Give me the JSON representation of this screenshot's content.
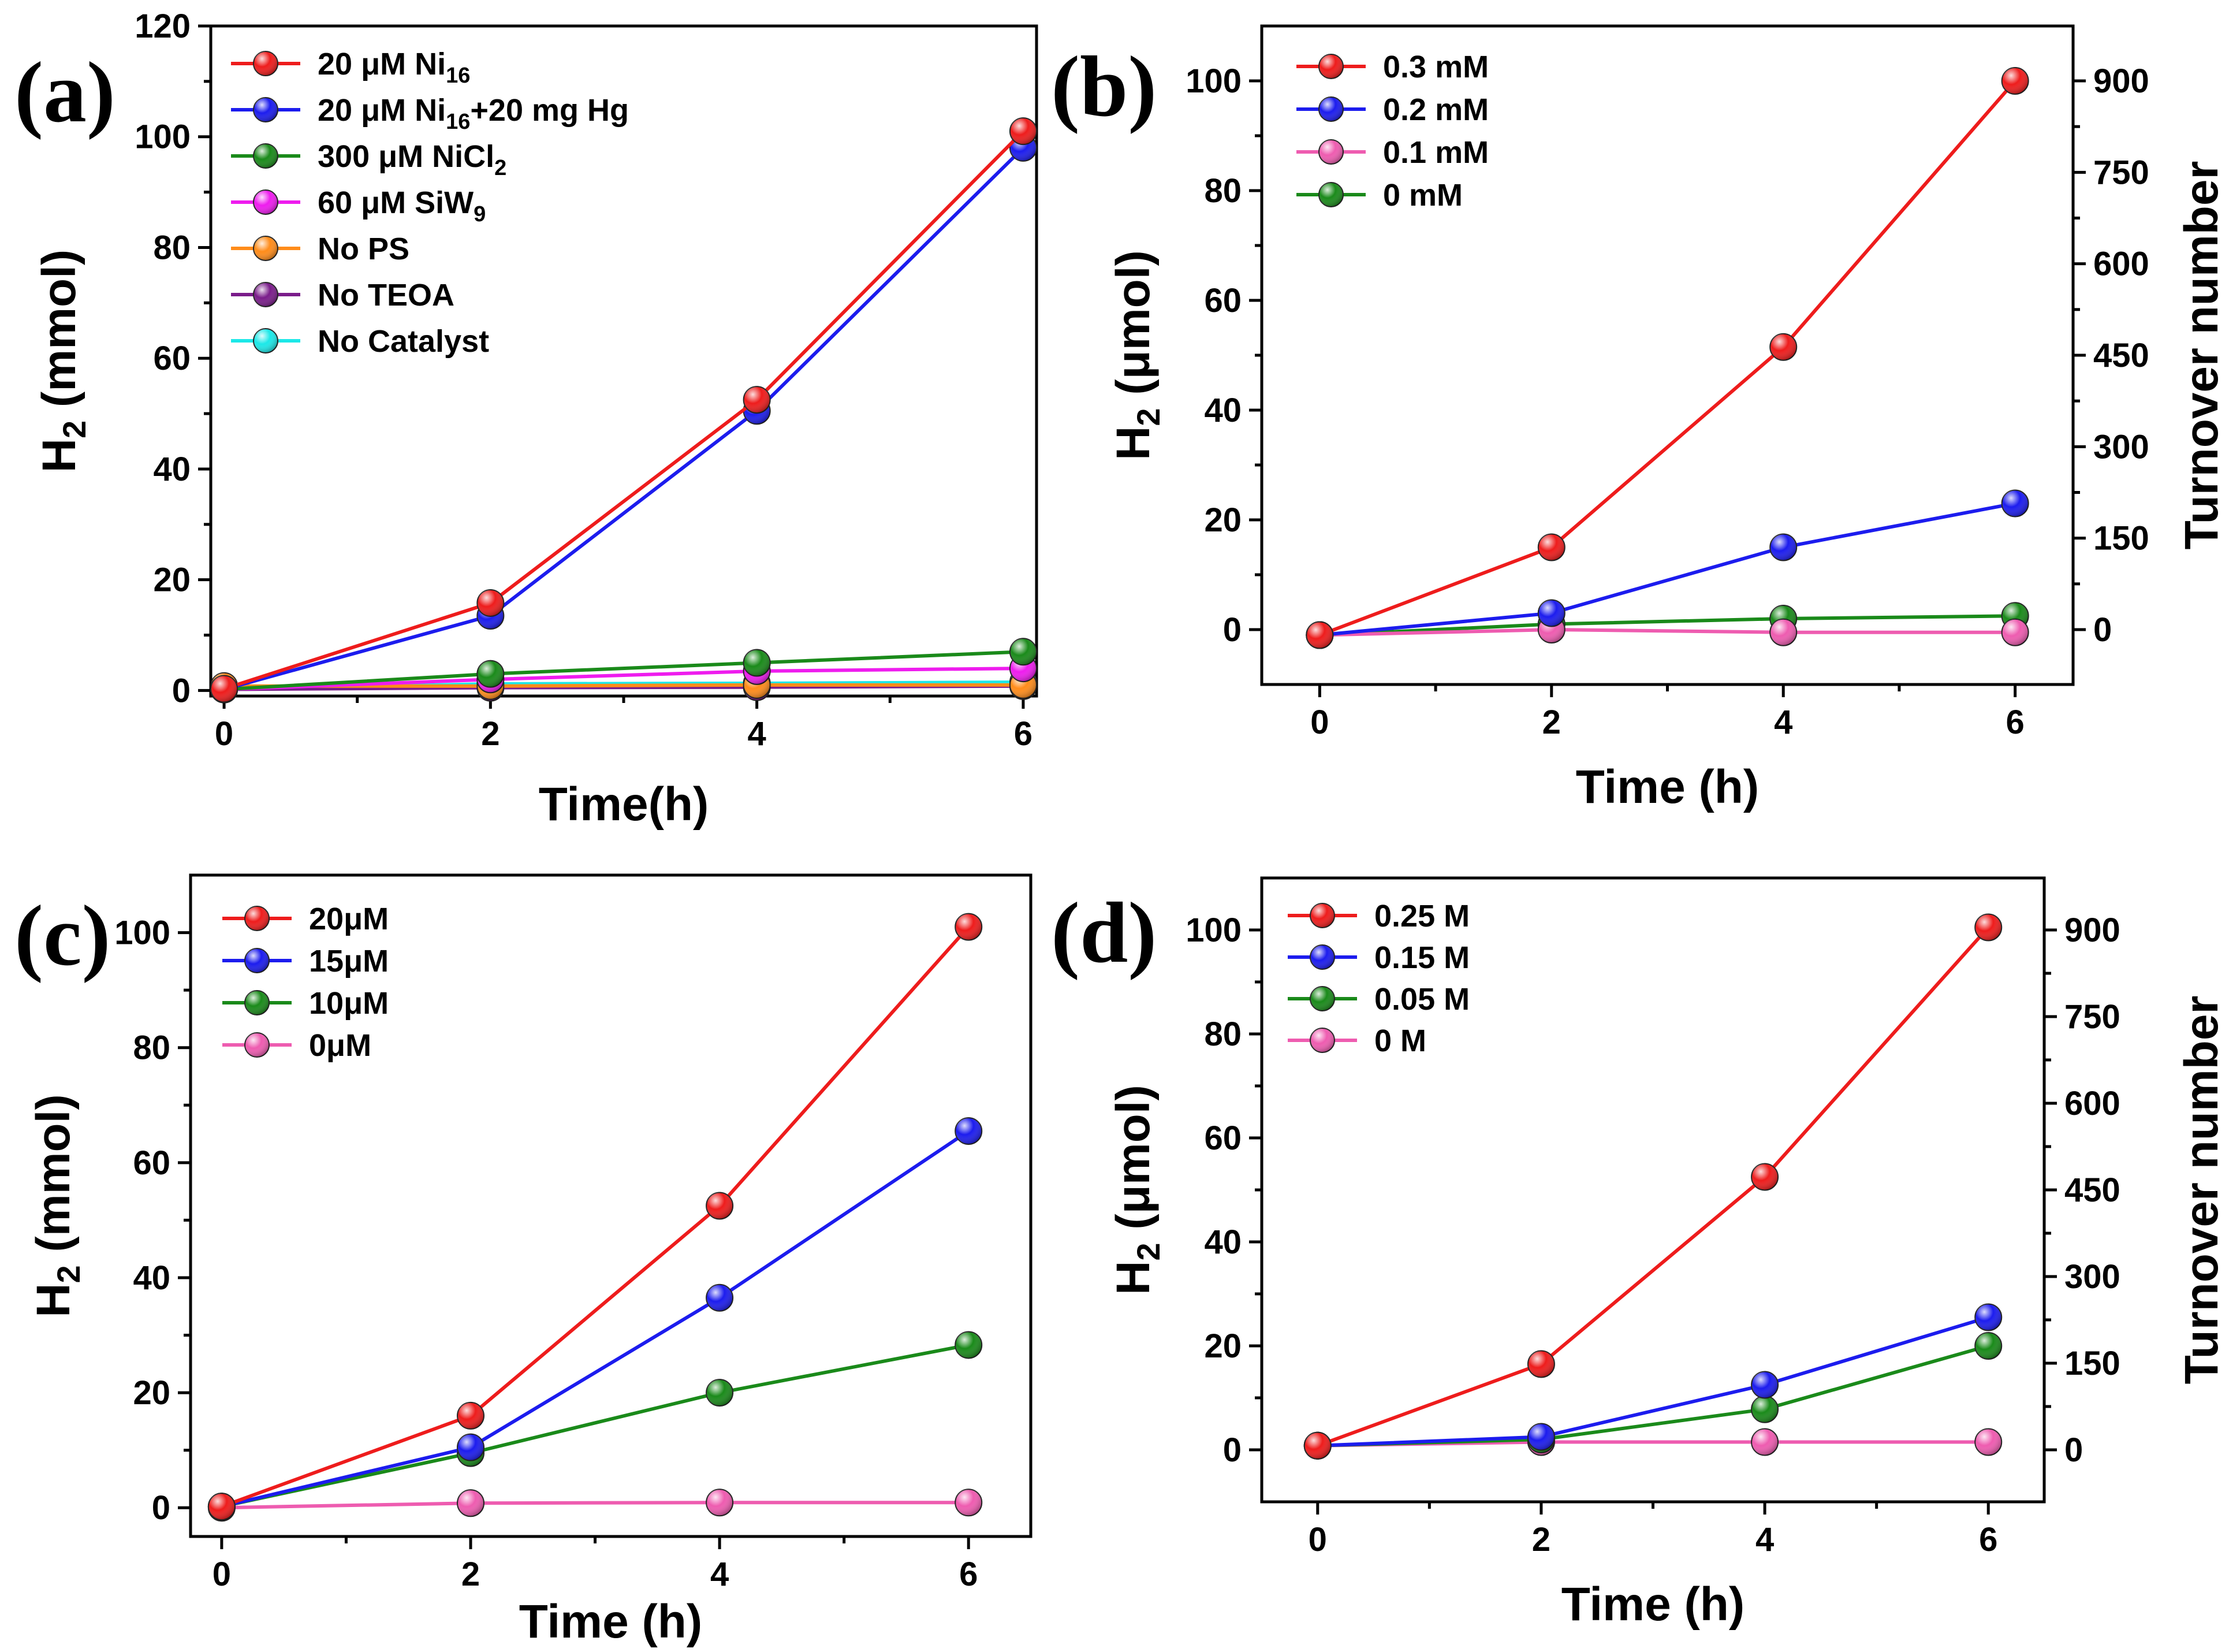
{
  "chart_data": [
    {
      "panel": "(a)",
      "type": "line",
      "xlabel": "Time(h)",
      "ylabel": "H2 (mmol)",
      "ylabel_main": "H",
      "ylabel_sub": "2",
      "ylabel_rest": " (mmol)",
      "xlim": [
        -0.1,
        6.1
      ],
      "ylim": [
        -1,
        120
      ],
      "xticks": [
        0,
        2,
        4,
        6
      ],
      "yticks": [
        0,
        20,
        40,
        60,
        80,
        100,
        120
      ],
      "legend_position": "top-left",
      "x": [
        0,
        2,
        4,
        6
      ],
      "series": [
        {
          "name": "20 μM Ni16",
          "label_main": "20 μM Ni",
          "label_sub": "16",
          "label_rest": "",
          "color": "#ee1c1c",
          "values": [
            0.3,
            15.8,
            52.5,
            101
          ]
        },
        {
          "name": "20 μM Ni16+20 mg Hg",
          "label_main": "20 μM Ni",
          "label_sub": "16",
          "label_rest": "+20 mg Hg",
          "color": "#1c1cee",
          "values": [
            0.2,
            13.5,
            50.5,
            98
          ]
        },
        {
          "name": "300 μM NiCl2",
          "label_main": "300 μM NiCl",
          "label_sub": "2",
          "label_rest": "",
          "color": "#1a8a1a",
          "values": [
            0.2,
            3.0,
            5.0,
            7.0
          ]
        },
        {
          "name": "60 μM SiW9",
          "label_main": "60 μM SiW",
          "label_sub": "9",
          "label_rest": "",
          "color": "#ee1cee",
          "values": [
            0.2,
            2.0,
            3.5,
            4.0
          ]
        },
        {
          "name": "No PS",
          "label_main": "No PS",
          "label_sub": "",
          "label_rest": "",
          "color": "#ff8c1a",
          "values": [
            0.8,
            0.8,
            1.0,
            1.0
          ]
        },
        {
          "name": "No TEOA",
          "label_main": "No TEOA",
          "label_sub": "",
          "label_rest": "",
          "color": "#7a1c8a",
          "values": [
            0.2,
            0.5,
            0.6,
            0.8
          ]
        },
        {
          "name": "No Catalyst",
          "label_main": "No Catalyst",
          "label_sub": "",
          "label_rest": "",
          "color": "#1ce8e8",
          "values": [
            0.2,
            1.2,
            1.3,
            1.5
          ]
        }
      ]
    },
    {
      "panel": "(b)",
      "type": "line",
      "xlabel": "Time (h)",
      "ylabel": "H2 (μmol)",
      "ylabel_main": "H",
      "ylabel_sub": "2",
      "ylabel_rest": " (μmol)",
      "y2label": "Turnover number",
      "xlim": [
        -0.5,
        6.5
      ],
      "ylim": [
        -10,
        110
      ],
      "y2lim": [
        -90,
        990
      ],
      "xticks": [
        0,
        2,
        4,
        6
      ],
      "yticks": [
        0,
        20,
        40,
        60,
        80,
        100
      ],
      "y2ticks": [
        0,
        150,
        300,
        450,
        600,
        750,
        900
      ],
      "legend_position": "top-left",
      "x": [
        0,
        2,
        4,
        6
      ],
      "series": [
        {
          "name": "0.3 mM",
          "label_main": "0.3 mM",
          "label_sub": "",
          "label_rest": "",
          "color": "#ee1c1c",
          "values": [
            -1,
            15,
            51.5,
            100
          ]
        },
        {
          "name": "0.2 mM",
          "label_main": "0.2 mM",
          "label_sub": "",
          "label_rest": "",
          "color": "#1c1cee",
          "values": [
            -1,
            3,
            15,
            23
          ]
        },
        {
          "name": "0.1 mM",
          "label_main": "0.1 mM",
          "label_sub": "",
          "label_rest": "",
          "color": "#ee5cb0",
          "values": [
            -1,
            0,
            -0.5,
            -0.5
          ]
        },
        {
          "name": "0 mM",
          "label_main": "0 mM",
          "label_sub": "",
          "label_rest": "",
          "color": "#1a8a1a",
          "values": [
            -1,
            1,
            2,
            2.5
          ]
        }
      ]
    },
    {
      "panel": "(c)",
      "type": "line",
      "xlabel": "Time (h)",
      "ylabel": "H2 (mmol)",
      "ylabel_main": "H",
      "ylabel_sub": "2",
      "ylabel_rest": " (mmol)",
      "xlim": [
        -0.25,
        6.5
      ],
      "ylim": [
        -5,
        110
      ],
      "xticks": [
        0,
        2,
        4,
        6
      ],
      "yticks": [
        0,
        20,
        40,
        60,
        80,
        100
      ],
      "legend_position": "top-left",
      "x": [
        0,
        2,
        4,
        6
      ],
      "series": [
        {
          "name": "20μM",
          "label_main": "20μM",
          "label_sub": "",
          "label_rest": "",
          "color": "#ee1c1c",
          "values": [
            0.2,
            16,
            52.5,
            101
          ]
        },
        {
          "name": "15μM",
          "label_main": "15μM",
          "label_sub": "",
          "label_rest": "",
          "color": "#1c1cee",
          "values": [
            0.2,
            10.5,
            36.5,
            65.5
          ]
        },
        {
          "name": "10μM",
          "label_main": "10μM",
          "label_sub": "",
          "label_rest": "",
          "color": "#1a8a1a",
          "values": [
            0.2,
            9.5,
            20,
            28.3
          ]
        },
        {
          "name": "0μM",
          "label_main": "0μM",
          "label_sub": "",
          "label_rest": "",
          "color": "#ee5cb0",
          "values": [
            0,
            0.8,
            0.9,
            0.9
          ]
        }
      ]
    },
    {
      "panel": "(d)",
      "type": "line",
      "xlabel": "Time (h)",
      "ylabel": "H2 (μmol)",
      "ylabel_main": "H",
      "ylabel_sub": "2",
      "ylabel_rest": " (μmol)",
      "y2label": "Turnover number",
      "xlim": [
        -0.5,
        6.5
      ],
      "ylim": [
        -10,
        110
      ],
      "y2lim": [
        -90,
        990
      ],
      "xticks": [
        0,
        2,
        4,
        6
      ],
      "yticks": [
        0,
        20,
        40,
        60,
        80,
        100
      ],
      "y2ticks": [
        0,
        150,
        300,
        450,
        600,
        750,
        900
      ],
      "legend_position": "top-left",
      "x": [
        0,
        2,
        4,
        6
      ],
      "series": [
        {
          "name": "0.25 M",
          "label_main": "0.25 M",
          "label_sub": "",
          "label_rest": "",
          "color": "#ee1c1c",
          "values": [
            0.8,
            16.5,
            52.5,
            100.5
          ]
        },
        {
          "name": "0.15 M",
          "label_main": "0.15 M",
          "label_sub": "",
          "label_rest": "",
          "color": "#1c1cee",
          "values": [
            0.8,
            2.5,
            12.5,
            25.5
          ]
        },
        {
          "name": "0.05 M",
          "label_main": "0.05 M",
          "label_sub": "",
          "label_rest": "",
          "color": "#1a8a1a",
          "values": [
            0.8,
            2,
            7.8,
            20
          ]
        },
        {
          "name": "0 M",
          "label_main": "0 M",
          "label_sub": "",
          "label_rest": "",
          "color": "#ee5cb0",
          "values": [
            0.8,
            1.5,
            1.5,
            1.5
          ]
        }
      ]
    }
  ]
}
